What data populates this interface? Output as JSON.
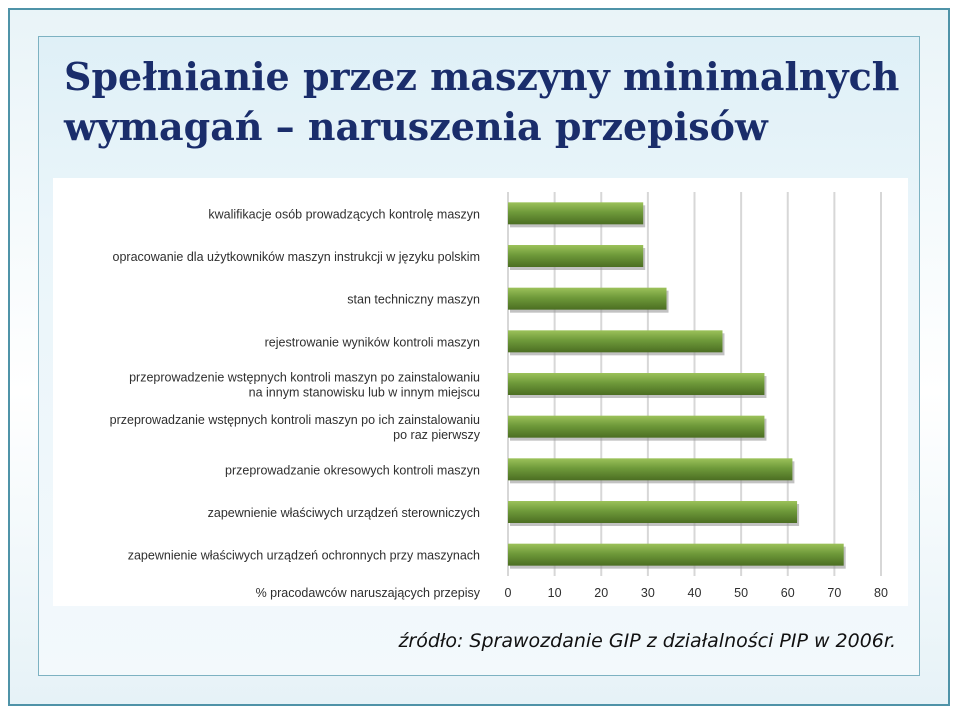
{
  "slide": {
    "title_line1": "Spełnianie przez maszyny minimalnych",
    "title_line2": "wymagań – naruszenia przepisów",
    "source": "źródło: Sprawozdanie GIP z działalności PIP w 2006r."
  },
  "colors": {
    "bar": "#6f9a3a",
    "bar_light": "#9cc25a",
    "bar_dark": "#4b6e22",
    "grid": "#d7d7d7",
    "label": "#2f2f2f"
  },
  "chart_data": {
    "type": "bar",
    "orientation": "horizontal",
    "categories": [
      [
        "kwalifikacje osób prowadzących kontrolę maszyn"
      ],
      [
        "opracowanie dla użytkowników maszyn instrukcji w języku polskim"
      ],
      [
        "stan techniczny maszyn"
      ],
      [
        "rejestrowanie wyników kontroli maszyn"
      ],
      [
        "przeprowadzenie wstępnych kontroli maszyn po zainstalowaniu",
        "na innym stanowisku lub w innym miejscu"
      ],
      [
        "przeprowadzanie wstępnych kontroli maszyn po ich zainstalowaniu",
        "po raz pierwszy"
      ],
      [
        "przeprowadzanie okresowych kontroli maszyn"
      ],
      [
        "zapewnienie właściwych urządzeń sterowniczych"
      ],
      [
        "zapewnienie właściwych urządzeń ochronnych przy maszynach"
      ]
    ],
    "values": [
      29,
      29,
      34,
      46,
      55,
      55,
      61,
      62,
      72
    ],
    "xlabel": "% pracodawców naruszających przepisy",
    "xlim": [
      0,
      80
    ],
    "xticks": [
      0,
      10,
      20,
      30,
      40,
      50,
      60,
      70,
      80
    ],
    "grid": true
  }
}
